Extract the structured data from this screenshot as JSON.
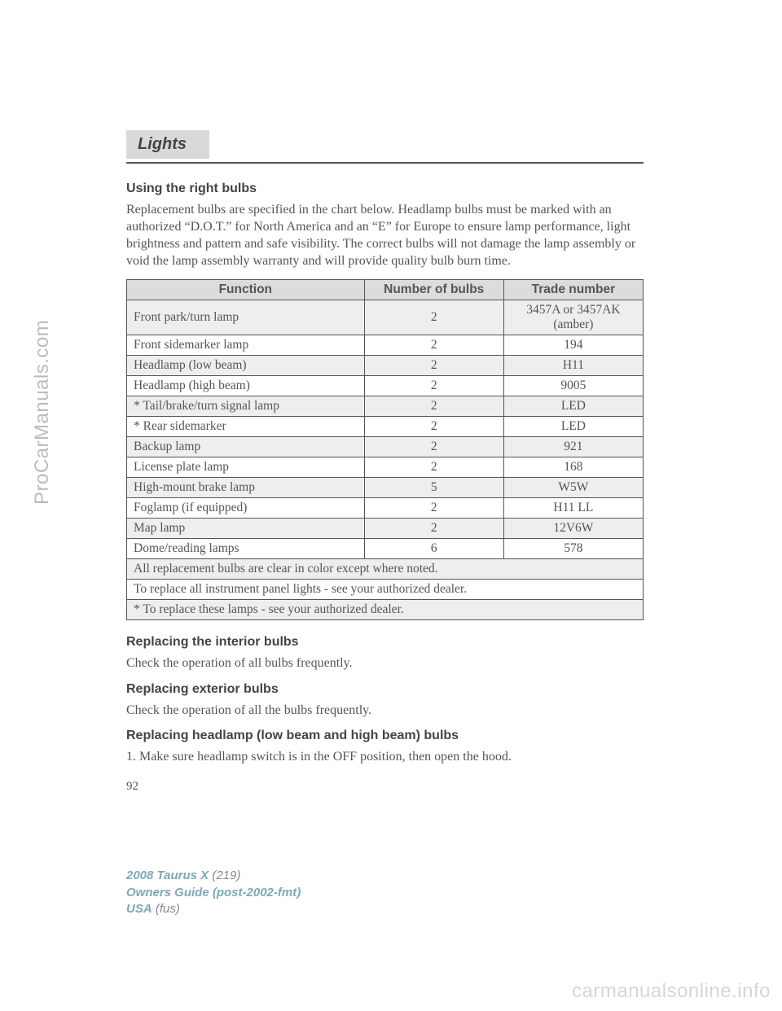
{
  "section_tab": "Lights",
  "headings": {
    "using": "Using the right bulbs",
    "interior": "Replacing the interior bulbs",
    "exterior": "Replacing exterior bulbs",
    "headlamp": "Replacing headlamp (low beam and high beam) bulbs"
  },
  "paras": {
    "intro": "Replacement bulbs are specified in the chart below. Headlamp bulbs must be marked with an authorized “D.O.T.” for North America and an “E” for Europe to ensure lamp performance, light brightness and pattern and safe visibility. The correct bulbs will not damage the lamp assembly or void the lamp assembly warranty and will provide quality bulb burn time.",
    "interior": "Check the operation of all bulbs frequently.",
    "exterior": "Check the operation of all the bulbs frequently.",
    "headlamp_step1": "1. Make sure headlamp switch is in the OFF position, then open the hood."
  },
  "table": {
    "headers": {
      "func": "Function",
      "num": "Number of bulbs",
      "trade": "Trade number"
    },
    "rows": [
      {
        "func": "Front park/turn lamp",
        "num": "2",
        "trade": "3457A or 3457AK (amber)"
      },
      {
        "func": "Front sidemarker lamp",
        "num": "2",
        "trade": "194"
      },
      {
        "func": "Headlamp (low beam)",
        "num": "2",
        "trade": "H11"
      },
      {
        "func": "Headlamp (high beam)",
        "num": "2",
        "trade": "9005"
      },
      {
        "func": "* Tail/brake/turn signal lamp",
        "num": "2",
        "trade": "LED"
      },
      {
        "func": "* Rear sidemarker",
        "num": "2",
        "trade": "LED"
      },
      {
        "func": "Backup lamp",
        "num": "2",
        "trade": "921"
      },
      {
        "func": "License plate lamp",
        "num": "2",
        "trade": "168"
      },
      {
        "func": "High-mount brake lamp",
        "num": "5",
        "trade": "W5W"
      },
      {
        "func": "Foglamp (if equipped)",
        "num": "2",
        "trade": "H11 LL"
      },
      {
        "func": "Map lamp",
        "num": "2",
        "trade": "12V6W"
      },
      {
        "func": "Dome/reading lamps",
        "num": "6",
        "trade": "578"
      }
    ],
    "notes": [
      "All replacement bulbs are clear in color except where noted.",
      "To replace all instrument panel lights - see your authorized dealer.",
      "* To replace these lamps - see your authorized dealer."
    ]
  },
  "page_number": "92",
  "footer": {
    "model": "2008 Taurus X",
    "code": "(219)",
    "guide": "Owners Guide (post-2002-fmt)",
    "usa": "USA",
    "fus": "(fus)"
  },
  "watermarks": {
    "left": "ProCarManuals.com",
    "bottom": "carmanualsonline.info"
  }
}
